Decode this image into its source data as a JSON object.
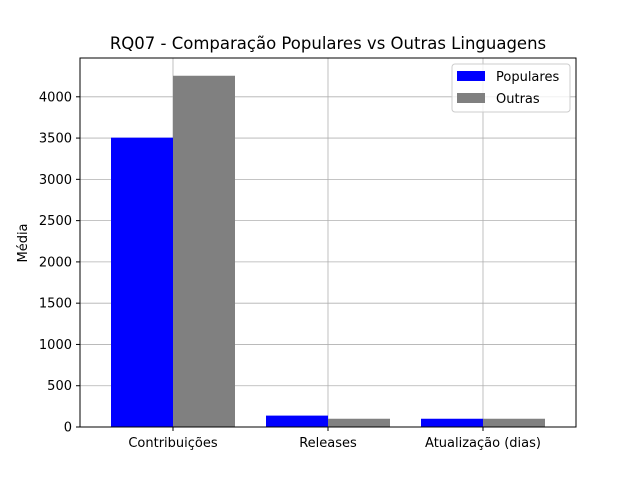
{
  "chart_data": {
    "type": "bar",
    "title": "RQ07 - Comparação Populares vs Outras Linguagens",
    "xlabel": "",
    "ylabel": "Média",
    "categories": [
      "Contribuições",
      "Releases",
      "Atualização (dias)"
    ],
    "series": [
      {
        "name": "Populares",
        "color": "#0000ff",
        "values": [
          3505,
          138,
          100
        ]
      },
      {
        "name": "Outras",
        "color": "#808080",
        "values": [
          4255,
          100,
          100
        ]
      }
    ],
    "ylim": [
      0,
      4470
    ],
    "yticks": [
      0,
      500,
      1000,
      1500,
      2000,
      2500,
      3000,
      3500,
      4000
    ],
    "grid": true,
    "legend_position": "top-right"
  }
}
